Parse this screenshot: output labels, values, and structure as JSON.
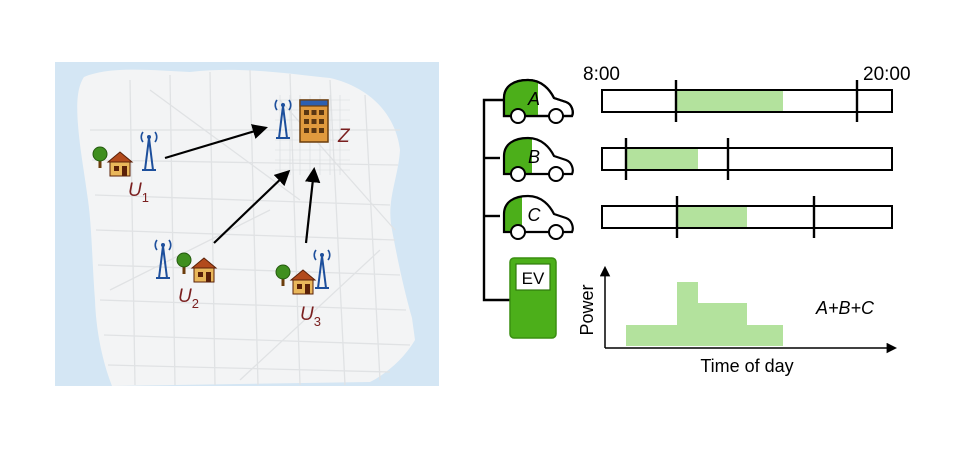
{
  "map": {
    "destination": {
      "label": "Z"
    },
    "origins": [
      {
        "label": "U",
        "sub": "1"
      },
      {
        "label": "U",
        "sub": "2"
      },
      {
        "label": "U",
        "sub": "3"
      }
    ]
  },
  "timeline": {
    "start_label": "8:00",
    "end_label": "20:00",
    "vehicles": [
      {
        "label": "A",
        "charge_fraction": 0.5
      },
      {
        "label": "B",
        "charge_fraction": 0.4
      },
      {
        "label": "C",
        "charge_fraction": 0.25
      }
    ]
  },
  "station": {
    "label": "EV",
    "colors": {
      "body": "#4caf1a",
      "screen": "#ffffff"
    }
  },
  "power_chart": {
    "ylabel": "Power",
    "xlabel": "Time of day",
    "annotation": "A+B+C"
  },
  "colors": {
    "car_green": "#4caf1a",
    "charge_fill": "#b3e29d",
    "map_water": "#d4e6f4",
    "map_land": "#f3f4f5",
    "arrow": "#000000",
    "map_label": "#7a1f1f"
  }
}
